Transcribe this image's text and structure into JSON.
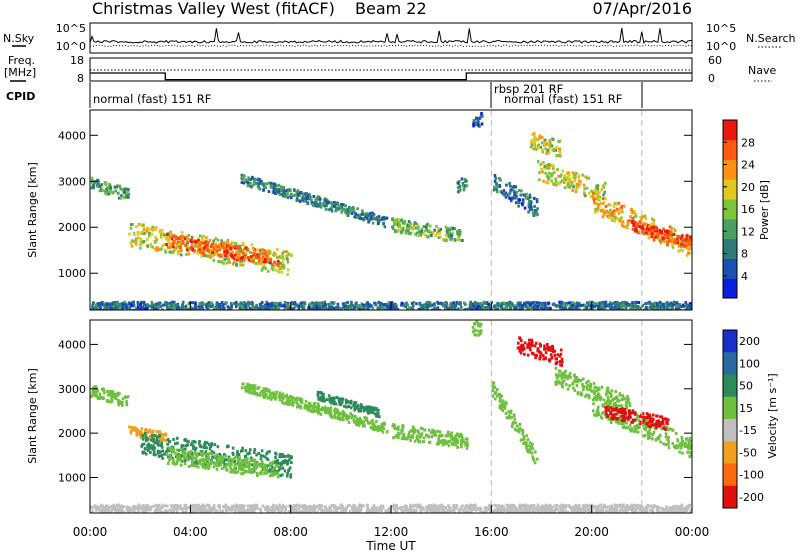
{
  "header": {
    "title": "Christmas Valley West (fitACF)",
    "beam": "Beam 22",
    "date": "07/Apr/2016"
  },
  "chart_data": [
    {
      "type": "line",
      "id": "noise",
      "label_left": "N.Sky",
      "label_right": "N.Search",
      "yticks_left": [
        "10^5",
        "10^0"
      ],
      "yticks_right": [
        "10^5",
        "10^0"
      ]
    },
    {
      "type": "line",
      "id": "freq",
      "label_left": "Freq.",
      "unit_left": "[MHz]",
      "label_right": "Nave",
      "yticks_left": [
        "18",
        "8"
      ],
      "yticks_right": [
        "60",
        "0"
      ],
      "segments": [
        {
          "x": [
            0,
            3
          ],
          "freq": 11.5
        },
        {
          "x": [
            3,
            15
          ],
          "freq": 8.6
        },
        {
          "x": [
            15,
            24
          ],
          "freq": 11.5
        }
      ]
    },
    {
      "type": "table",
      "id": "cpid",
      "label": "CPID",
      "segments": [
        {
          "start": 0,
          "end": 16,
          "text": "normal (fast) 151 RF"
        },
        {
          "start": 16,
          "end": 22,
          "text": "rbsp 201 RF"
        },
        {
          "start": 16.4,
          "end": 22,
          "text": "normal (fast) 151 RF"
        }
      ]
    },
    {
      "type": "heatmap",
      "id": "power",
      "ylabel": "Slant Range [km]",
      "yticks": [
        1000,
        2000,
        3000,
        4000
      ],
      "ylim": [
        200,
        4550
      ],
      "xlim": [
        0,
        24
      ],
      "colorbar": {
        "label": "Power [dB]",
        "ticks": [
          4,
          8,
          12,
          16,
          20,
          24,
          28
        ],
        "colors": [
          "#0a1ee0",
          "#1c50b0",
          "#2f7a78",
          "#4aa060",
          "#7cc43a",
          "#e0c820",
          "#ff9010",
          "#ff5a10",
          "#e81810"
        ]
      },
      "bands": [
        {
          "x": [
            0.0,
            1.5
          ],
          "r": [
            2950,
            2700
          ],
          "w": 130,
          "v": 12
        },
        {
          "x": [
            1.5,
            8.0
          ],
          "r": [
            1850,
            1200
          ],
          "w": 260,
          "v": 18
        },
        {
          "x": [
            3.0,
            7.5
          ],
          "r": [
            1700,
            1300
          ],
          "w": 150,
          "v": 26
        },
        {
          "x": [
            6.0,
            11.8
          ],
          "r": [
            3050,
            2100
          ],
          "w": 110,
          "v": 9
        },
        {
          "x": [
            12.0,
            14.8
          ],
          "r": [
            2050,
            1800
          ],
          "w": 150,
          "v": 14
        },
        {
          "x": [
            14.6,
            15.0
          ],
          "r": [
            2900,
            2950
          ],
          "w": 140,
          "v": 10
        },
        {
          "x": [
            15.2,
            15.6
          ],
          "r": [
            4350,
            4350
          ],
          "w": 160,
          "v": 6
        },
        {
          "x": [
            16.0,
            17.8
          ],
          "r": [
            3000,
            2400
          ],
          "w": 200,
          "v": 8
        },
        {
          "x": [
            17.8,
            20.5
          ],
          "r": [
            3250,
            2750
          ],
          "w": 220,
          "v": 18
        },
        {
          "x": [
            17.4,
            18.7
          ],
          "r": [
            3900,
            3700
          ],
          "w": 180,
          "v": 18
        },
        {
          "x": [
            20.0,
            24.0
          ],
          "r": [
            2550,
            1550
          ],
          "w": 230,
          "v": 22
        },
        {
          "x": [
            21.5,
            24.0
          ],
          "r": [
            2050,
            1650
          ],
          "w": 120,
          "v": 28
        },
        {
          "x": [
            0.0,
            24.0
          ],
          "r": [
            280,
            280
          ],
          "w": 90,
          "v": 8
        }
      ]
    },
    {
      "type": "heatmap",
      "id": "velocity",
      "ylabel": "Slant Range [km]",
      "yticks": [
        1000,
        2000,
        3000,
        4000
      ],
      "ylim": [
        200,
        4550
      ],
      "xlim": [
        0,
        24
      ],
      "xticks": [
        "00:00",
        "04:00",
        "08:00",
        "12:00",
        "16:00",
        "20:00",
        "00:00"
      ],
      "xlabel": "Time UT",
      "colorbar": {
        "label": "Velocity [m s⁻¹]",
        "ticks": [
          "200",
          "100",
          "50",
          "15",
          "-15",
          "-50",
          "-100",
          "-200"
        ],
        "colors": [
          "#1830c8",
          "#2a6aa0",
          "#2d8a5a",
          "#70c040",
          "#c0c0c0",
          "#f0a020",
          "#ff6a10",
          "#e01010"
        ]
      },
      "bands": [
        {
          "x": [
            0.0,
            1.5
          ],
          "r": [
            2950,
            2700
          ],
          "w": 130,
          "v": 0
        },
        {
          "x": [
            1.5,
            3.0
          ],
          "r": [
            2050,
            1900
          ],
          "w": 110,
          "v": -60
        },
        {
          "x": [
            2.0,
            8.0
          ],
          "r": [
            1750,
            1250
          ],
          "w": 260,
          "v": 30
        },
        {
          "x": [
            3.0,
            7.5
          ],
          "r": [
            1500,
            1150
          ],
          "w": 180,
          "v": 0
        },
        {
          "x": [
            6.0,
            11.8
          ],
          "r": [
            3050,
            2100
          ],
          "w": 110,
          "v": 0
        },
        {
          "x": [
            9.0,
            11.5
          ],
          "r": [
            2850,
            2450
          ],
          "w": 90,
          "v": 30
        },
        {
          "x": [
            12.0,
            15.0
          ],
          "r": [
            2050,
            1800
          ],
          "w": 160,
          "v": 0
        },
        {
          "x": [
            15.2,
            15.6
          ],
          "r": [
            4350,
            4350
          ],
          "w": 160,
          "v": 0
        },
        {
          "x": [
            16.0,
            17.8
          ],
          "r": [
            3000,
            1400
          ],
          "w": 170,
          "v": 0
        },
        {
          "x": [
            17.0,
            18.8
          ],
          "r": [
            4000,
            3700
          ],
          "w": 200,
          "v": -250
        },
        {
          "x": [
            18.5,
            21.5
          ],
          "r": [
            3300,
            2600
          ],
          "w": 200,
          "v": 0
        },
        {
          "x": [
            20.0,
            24.0
          ],
          "r": [
            2650,
            1650
          ],
          "w": 230,
          "v": 0
        },
        {
          "x": [
            20.5,
            23.0
          ],
          "r": [
            2500,
            2200
          ],
          "w": 140,
          "v": -250
        },
        {
          "x": [
            0.0,
            24.0
          ],
          "r": [
            290,
            290
          ],
          "w": 90,
          "v": -40
        }
      ]
    }
  ]
}
